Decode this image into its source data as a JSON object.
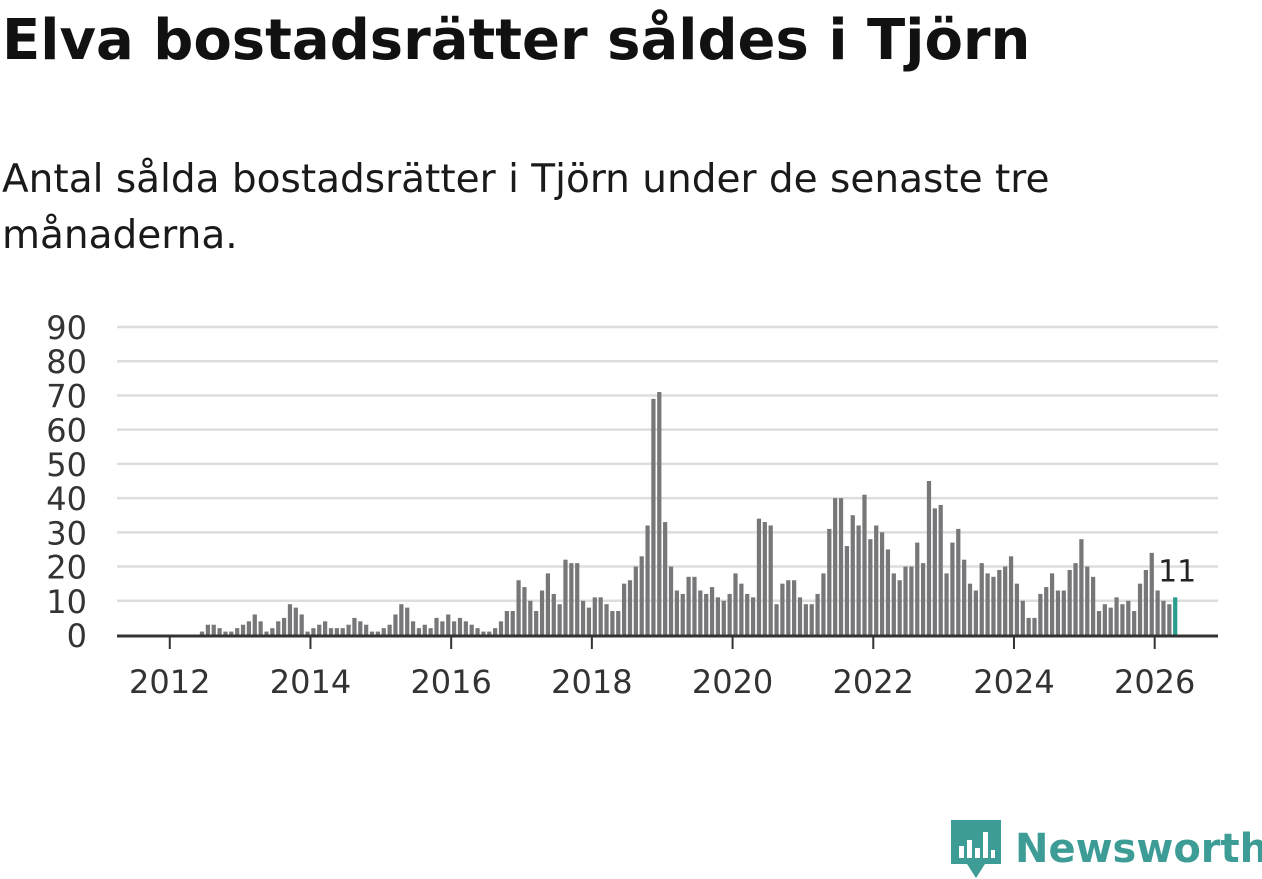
{
  "title": "Elva bostadsrätter såldes i Tjörn",
  "subtitle": "Antal sålda bostadsrätter i Tjörn under de senaste tre månaderna.",
  "brand": "Newsworthy",
  "colors": {
    "bar": "#777679",
    "highlight": "#2a9d8f",
    "grid": "#dddddd",
    "axis": "#333333",
    "brand": "#3e9c96"
  },
  "chart_data": {
    "type": "bar",
    "title": "Elva bostadsrätter såldes i Tjörn",
    "xlabel": "",
    "ylabel": "",
    "ylim": [
      0,
      90
    ],
    "yticks": [
      0,
      10,
      20,
      30,
      40,
      50,
      60,
      70,
      80,
      90
    ],
    "xlim": [
      2011.25,
      2026.9
    ],
    "xticks": [
      2012,
      2014,
      2016,
      2018,
      2020,
      2022,
      2024,
      2026
    ],
    "start": "2011-01",
    "end": "2026-01",
    "values": [
      0,
      0,
      0,
      0,
      0,
      0,
      0,
      0,
      0,
      0,
      0,
      0,
      0,
      0,
      0,
      0,
      0,
      1,
      3,
      3,
      2,
      1,
      1,
      2,
      3,
      4,
      6,
      4,
      1,
      2,
      4,
      5,
      9,
      8,
      6,
      1,
      2,
      3,
      4,
      2,
      2,
      2,
      3,
      5,
      4,
      3,
      1,
      1,
      2,
      3,
      6,
      9,
      8,
      4,
      2,
      3,
      2,
      5,
      4,
      6,
      4,
      5,
      4,
      3,
      2,
      1,
      1,
      2,
      4,
      7,
      7,
      16,
      14,
      10,
      7,
      13,
      18,
      12,
      9,
      22,
      21,
      21,
      10,
      8,
      11,
      11,
      9,
      7,
      7,
      15,
      16,
      20,
      23,
      32,
      69,
      71,
      33,
      20,
      13,
      12,
      17,
      17,
      13,
      12,
      14,
      11,
      10,
      12,
      18,
      15,
      12,
      11,
      34,
      33,
      32,
      9,
      15,
      16,
      16,
      11,
      9,
      9,
      12,
      18,
      31,
      40,
      40,
      26,
      35,
      32,
      41,
      28,
      32,
      30,
      25,
      18,
      16,
      20,
      20,
      27,
      21,
      45,
      37,
      38,
      18,
      27,
      31,
      22,
      15,
      13,
      21,
      18,
      17,
      19,
      20,
      23,
      15,
      10,
      5,
      5,
      12,
      14,
      18,
      13,
      13,
      19,
      21,
      28,
      20,
      17,
      7,
      9,
      8,
      11,
      9,
      10,
      7,
      15,
      19,
      24,
      13,
      10,
      9,
      11
    ],
    "highlight": {
      "label": "11",
      "value": 11
    }
  }
}
